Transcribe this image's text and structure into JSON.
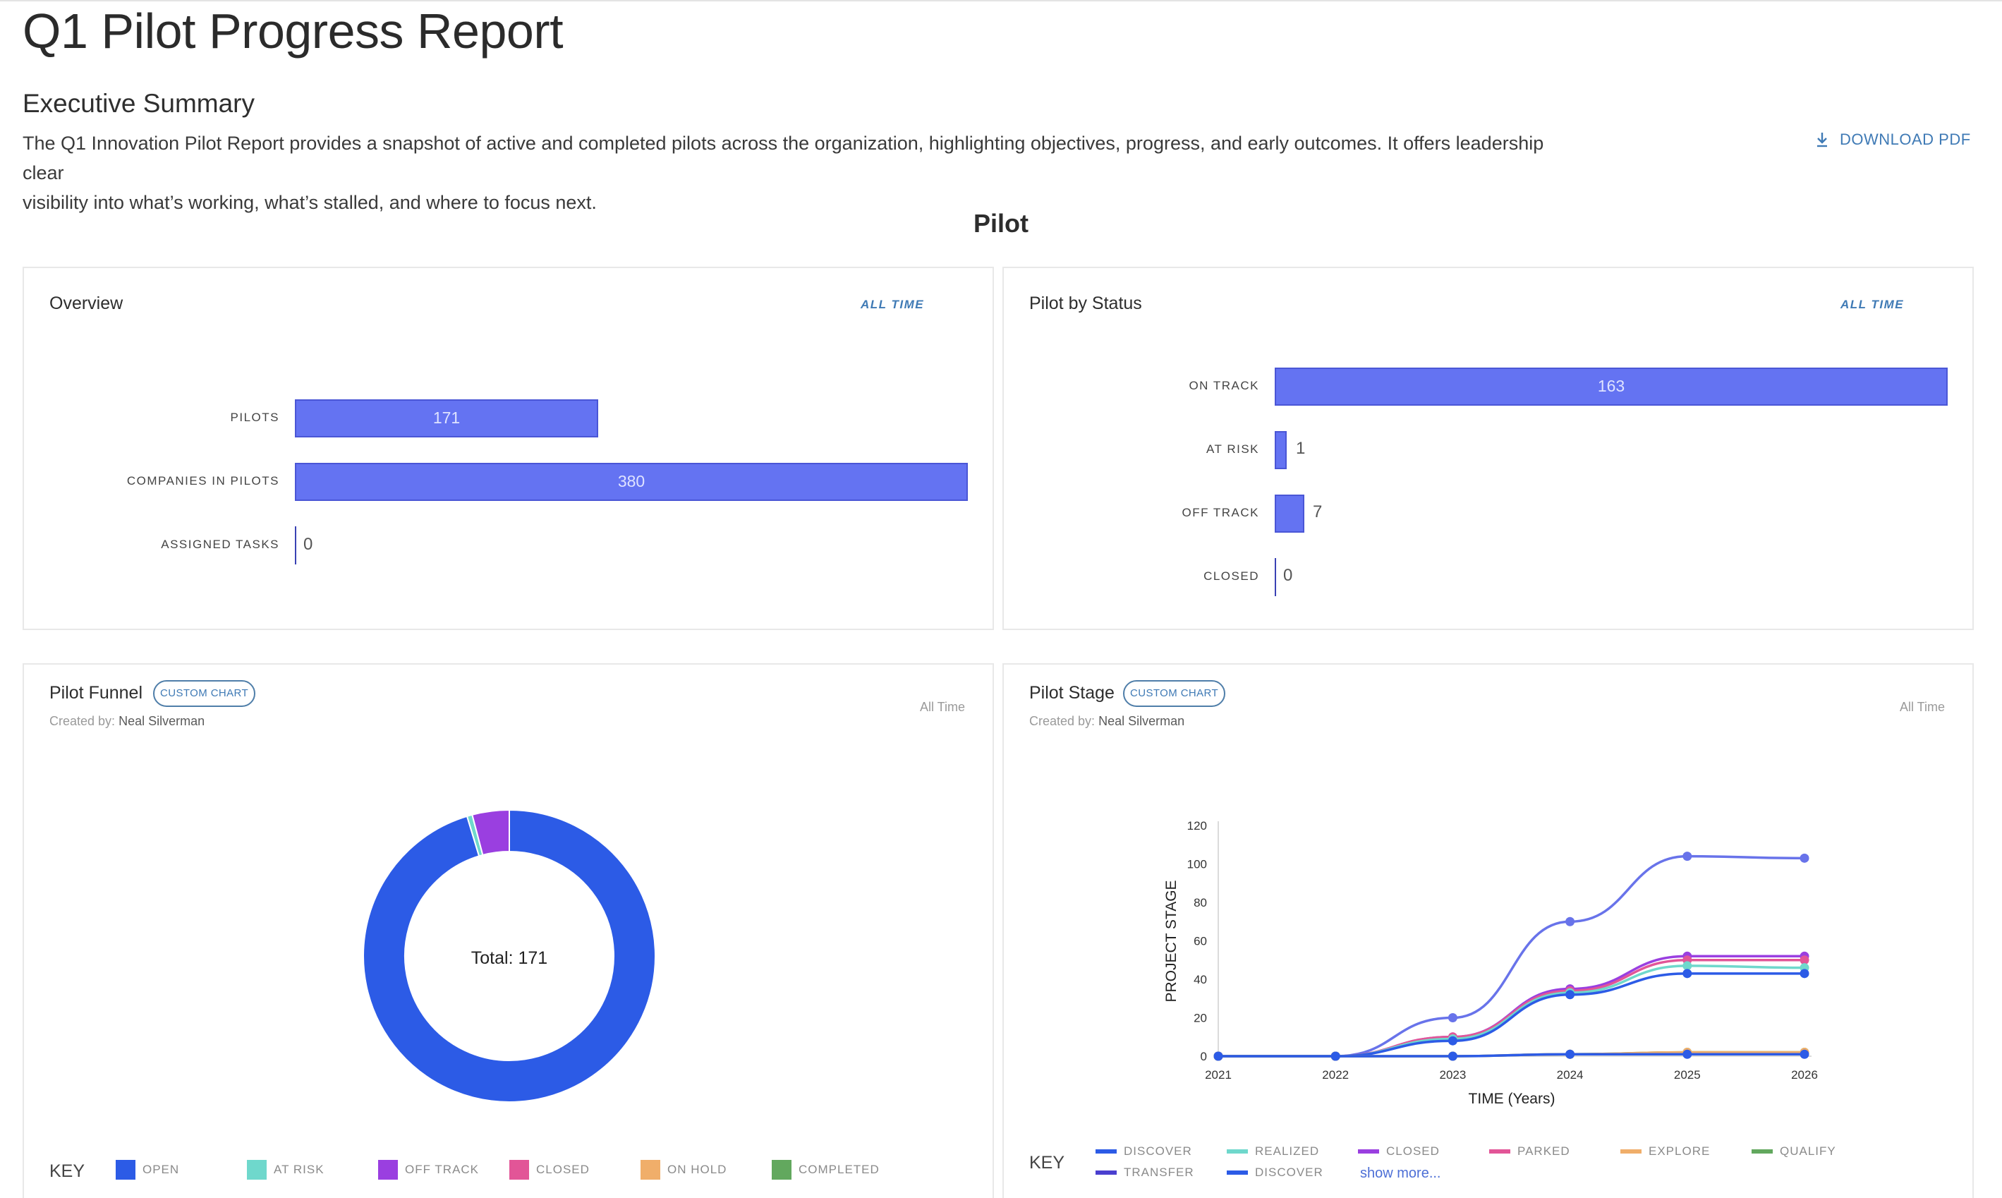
{
  "report": {
    "title": "Q1 Pilot Progress Report",
    "section_title": "Executive Summary",
    "summary_line1": "The Q1 Innovation Pilot Report provides a snapshot of active and completed pilots across the organization, highlighting objectives, progress, and early outcomes. It offers leadership clear",
    "summary_line2": "visibility into what’s working, what’s stalled, and where to focus next.",
    "download_label": "DOWNLOAD PDF",
    "section_heading": "Pilot"
  },
  "overview": {
    "title": "Overview",
    "range": "ALL TIME",
    "rows": [
      {
        "label": "PILOTS",
        "value": "171"
      },
      {
        "label": "COMPANIES IN PILOTS",
        "value": "380"
      },
      {
        "label": "ASSIGNED TASKS",
        "value": "0"
      }
    ]
  },
  "status": {
    "title": "Pilot by Status",
    "range": "ALL TIME",
    "rows": [
      {
        "label": "ON TRACK",
        "value": "163"
      },
      {
        "label": "AT RISK",
        "value": "1"
      },
      {
        "label": "OFF TRACK",
        "value": "7"
      },
      {
        "label": "CLOSED",
        "value": "0"
      }
    ]
  },
  "funnel": {
    "title": "Pilot Funnel",
    "badge": "CUSTOM CHART",
    "created_prefix": "Created by:",
    "created_by": "Neal Silverman",
    "range": "All Time",
    "center_label": "Total: 171",
    "key_title": "KEY",
    "legend": [
      {
        "label": "OPEN",
        "color": "#2c5be6"
      },
      {
        "label": "AT RISK",
        "color": "#6fd8cc"
      },
      {
        "label": "OFF TRACK",
        "color": "#9a3fe0"
      },
      {
        "label": "CLOSED",
        "color": "#e25597"
      },
      {
        "label": "ON HOLD",
        "color": "#f0ae6a"
      },
      {
        "label": "COMPLETED",
        "color": "#62a85e"
      }
    ]
  },
  "stage": {
    "title": "Pilot Stage",
    "badge": "CUSTOM CHART",
    "created_prefix": "Created by:",
    "created_by": "Neal Silverman",
    "range": "All Time",
    "key_title": "KEY",
    "show_more": "show more...",
    "legend": [
      {
        "label": "DISCOVER",
        "color": "#2c5be6"
      },
      {
        "label": "REALIZED",
        "color": "#6fd8cc"
      },
      {
        "label": "CLOSED",
        "color": "#9a3fe0"
      },
      {
        "label": "PARKED",
        "color": "#e25597"
      },
      {
        "label": "EXPLORE",
        "color": "#f0ae6a"
      },
      {
        "label": "QUALIFY",
        "color": "#62a85e"
      },
      {
        "label": "TRANSFER",
        "color": "#4a3fcf"
      },
      {
        "label": "DISCOVER",
        "color": "#2c5be6"
      }
    ]
  },
  "chart_data": [
    {
      "type": "bar",
      "title": "Overview",
      "orientation": "horizontal",
      "categories": [
        "PILOTS",
        "COMPANIES IN PILOTS",
        "ASSIGNED TASKS"
      ],
      "values": [
        171,
        380,
        0
      ]
    },
    {
      "type": "bar",
      "title": "Pilot by Status",
      "orientation": "horizontal",
      "categories": [
        "ON TRACK",
        "AT RISK",
        "OFF TRACK",
        "CLOSED"
      ],
      "values": [
        163,
        1,
        7,
        0
      ]
    },
    {
      "type": "pie",
      "title": "Pilot Funnel",
      "donut": true,
      "total": 171,
      "slices": [
        {
          "name": "OPEN",
          "value": 163,
          "color": "#2c5be6"
        },
        {
          "name": "AT RISK",
          "value": 1,
          "color": "#6fd8cc"
        },
        {
          "name": "OFF TRACK",
          "value": 7,
          "color": "#9a3fe0"
        },
        {
          "name": "CLOSED",
          "value": 0,
          "color": "#e25597"
        },
        {
          "name": "ON HOLD",
          "value": 0,
          "color": "#f0ae6a"
        },
        {
          "name": "COMPLETED",
          "value": 0,
          "color": "#62a85e"
        }
      ]
    },
    {
      "type": "line",
      "title": "Pilot Stage",
      "xlabel": "TIME (Years)",
      "ylabel": "PROJECT STAGE",
      "x": [
        2021,
        2022,
        2023,
        2024,
        2025,
        2026
      ],
      "x_ticks": [
        "2021",
        "2022",
        "2023",
        "2024",
        "2025",
        "2026"
      ],
      "ylim": [
        0,
        120
      ],
      "y_ticks": [
        "0",
        "20",
        "40",
        "60",
        "80",
        "100",
        "120"
      ],
      "series": [
        {
          "values": [
            0,
            0,
            20,
            70,
            104,
            103
          ],
          "color": "#6873ea"
        },
        {
          "values": [
            0,
            0,
            10,
            35,
            52,
            52
          ],
          "color": "#9a3fe0"
        },
        {
          "values": [
            0,
            0,
            10,
            34,
            50,
            50
          ],
          "color": "#e25597"
        },
        {
          "values": [
            0,
            0,
            9,
            33,
            47,
            46
          ],
          "color": "#6fd8cc"
        },
        {
          "values": [
            0,
            0,
            8,
            32,
            43,
            43
          ],
          "color": "#2c5be6"
        },
        {
          "values": [
            0,
            0,
            0,
            1,
            2,
            2
          ],
          "color": "#62a85e"
        },
        {
          "values": [
            0,
            0,
            0,
            1,
            2,
            2
          ],
          "color": "#f0ae6a"
        },
        {
          "values": [
            0,
            0,
            0,
            1,
            1,
            1
          ],
          "color": "#2c5be6"
        }
      ]
    }
  ]
}
